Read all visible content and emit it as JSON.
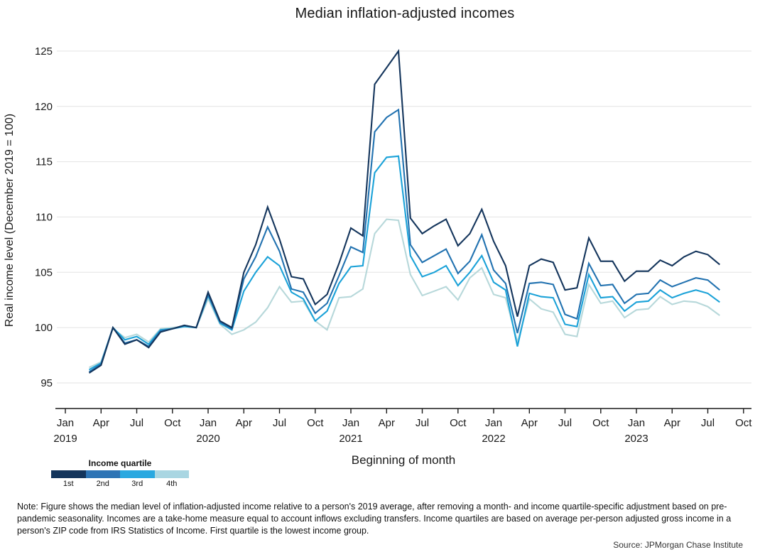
{
  "title": "Median inflation-adjusted incomes",
  "legend": {
    "title": "Income quartile",
    "items": [
      {
        "label": "1st",
        "color": "#14355c"
      },
      {
        "label": "2nd",
        "color": "#2e74b5"
      },
      {
        "label": "3rd",
        "color": "#29a8e0"
      },
      {
        "label": "4th",
        "color": "#a9d6e2"
      }
    ]
  },
  "note": {
    "text": "Note: Figure shows the median level of inflation-adjusted income relative to a person's 2019 average, after removing a month- and income quartile-specific adjustment based on pre-pandemic seasonality. Incomes are a take-home measure equal to account inflows excluding transfers. Income quartiles are based on average per-person adjusted gross income in a person's ZIP code from IRS Statistics of Income. First quartile is the lowest income group."
  },
  "source": {
    "text": "Source: JPMorgan Chase Institute"
  },
  "chart_data": {
    "type": "line",
    "title": "Median inflation-adjusted incomes",
    "xlabel": "Beginning of month",
    "ylabel": "Real income level (December 2019 = 100)",
    "ylim": [
      92.5,
      126.5
    ],
    "grid": "horizontal",
    "legend_position": "bottom-left",
    "y_ticks": [
      95,
      100,
      105,
      110,
      115,
      120,
      125
    ],
    "x_ticks": [
      {
        "i": 0,
        "label": "Jan",
        "year": "2019"
      },
      {
        "i": 3,
        "label": "Apr"
      },
      {
        "i": 6,
        "label": "Jul"
      },
      {
        "i": 9,
        "label": "Oct"
      },
      {
        "i": 12,
        "label": "Jan",
        "year": "2020"
      },
      {
        "i": 15,
        "label": "Apr"
      },
      {
        "i": 18,
        "label": "Jul"
      },
      {
        "i": 21,
        "label": "Oct"
      },
      {
        "i": 24,
        "label": "Jan",
        "year": "2021"
      },
      {
        "i": 27,
        "label": "Apr"
      },
      {
        "i": 30,
        "label": "Jul"
      },
      {
        "i": 33,
        "label": "Oct"
      },
      {
        "i": 36,
        "label": "Jan",
        "year": "2022"
      },
      {
        "i": 39,
        "label": "Apr"
      },
      {
        "i": 42,
        "label": "Jul"
      },
      {
        "i": 45,
        "label": "Oct"
      },
      {
        "i": 48,
        "label": "Jan",
        "year": "2023"
      },
      {
        "i": 51,
        "label": "Apr"
      },
      {
        "i": 54,
        "label": "Jul"
      },
      {
        "i": 57,
        "label": "Oct"
      }
    ],
    "months": [
      "2019-03",
      "2019-04",
      "2019-05",
      "2019-06",
      "2019-07",
      "2019-08",
      "2019-09",
      "2019-10",
      "2019-11",
      "2019-12",
      "2020-01",
      "2020-02",
      "2020-03",
      "2020-04",
      "2020-05",
      "2020-06",
      "2020-07",
      "2020-08",
      "2020-09",
      "2020-10",
      "2020-11",
      "2020-12",
      "2021-01",
      "2021-02",
      "2021-03",
      "2021-04",
      "2021-05",
      "2021-06",
      "2021-07",
      "2021-08",
      "2021-09",
      "2021-10",
      "2021-11",
      "2021-12",
      "2022-01",
      "2022-02",
      "2022-03",
      "2022-04",
      "2022-05",
      "2022-06",
      "2022-07",
      "2022-08",
      "2022-09",
      "2022-10",
      "2022-11",
      "2022-12",
      "2023-01",
      "2023-02",
      "2023-03",
      "2023-04",
      "2023-05",
      "2023-06",
      "2023-07",
      "2023-08"
    ],
    "series": [
      {
        "name": "1st",
        "color": "#14355c",
        "values": [
          95.9,
          96.6,
          100.0,
          98.5,
          98.9,
          98.2,
          99.6,
          99.9,
          100.2,
          100.0,
          103.2,
          100.6,
          100.0,
          105.0,
          107.5,
          110.9,
          108.0,
          104.6,
          104.4,
          102.1,
          103.0,
          105.8,
          109.0,
          108.3,
          122.0,
          123.5,
          125.0,
          109.9,
          108.5,
          109.2,
          109.8,
          107.4,
          108.5,
          110.7,
          107.8,
          105.6,
          101.0,
          105.6,
          106.2,
          105.9,
          103.4,
          103.6,
          108.1,
          106.0,
          106.0,
          104.2,
          105.1,
          105.1,
          106.1,
          105.6,
          106.4,
          106.9,
          106.6,
          105.7
        ]
      },
      {
        "name": "2nd",
        "color": "#2272b0",
        "values": [
          96.0,
          96.7,
          100.0,
          98.6,
          98.9,
          98.3,
          99.7,
          99.9,
          100.2,
          100.0,
          103.0,
          100.5,
          99.9,
          104.4,
          106.4,
          109.1,
          106.9,
          103.5,
          103.2,
          101.3,
          102.2,
          104.7,
          107.3,
          106.8,
          117.7,
          119.0,
          119.7,
          107.5,
          105.9,
          106.5,
          107.1,
          104.9,
          106.0,
          108.4,
          105.2,
          104.0,
          99.5,
          104.0,
          104.1,
          103.9,
          101.2,
          100.8,
          105.8,
          103.8,
          103.9,
          102.2,
          103.0,
          103.1,
          104.3,
          103.7,
          104.1,
          104.5,
          104.3,
          103.4
        ]
      },
      {
        "name": "3rd",
        "color": "#1ba2d8",
        "values": [
          96.2,
          96.8,
          100.0,
          98.9,
          99.2,
          98.5,
          99.8,
          99.9,
          100.1,
          100.0,
          102.9,
          100.4,
          99.8,
          103.3,
          105.0,
          106.4,
          105.6,
          103.2,
          102.6,
          100.6,
          101.5,
          104.0,
          105.5,
          105.6,
          114.0,
          115.4,
          115.5,
          106.5,
          104.6,
          105.0,
          105.6,
          103.8,
          105.0,
          106.5,
          104.1,
          103.4,
          98.3,
          103.1,
          102.8,
          102.7,
          100.3,
          100.1,
          104.8,
          102.7,
          102.8,
          101.5,
          102.3,
          102.4,
          103.4,
          102.7,
          103.1,
          103.4,
          103.1,
          102.3
        ]
      },
      {
        "name": "4th",
        "color": "#b7d8da",
        "values": [
          96.4,
          96.9,
          99.9,
          99.1,
          99.4,
          98.7,
          99.9,
          100.0,
          100.1,
          100.0,
          102.6,
          100.3,
          99.4,
          99.8,
          100.5,
          101.8,
          103.7,
          102.3,
          102.4,
          100.6,
          99.8,
          102.7,
          102.8,
          103.5,
          108.5,
          109.8,
          109.7,
          104.8,
          102.9,
          103.3,
          103.7,
          102.5,
          104.5,
          105.4,
          103.0,
          102.7,
          98.7,
          102.6,
          101.7,
          101.4,
          99.4,
          99.2,
          103.9,
          102.2,
          102.4,
          100.9,
          101.6,
          101.7,
          102.8,
          102.1,
          102.4,
          102.3,
          101.9,
          101.1
        ]
      }
    ]
  }
}
